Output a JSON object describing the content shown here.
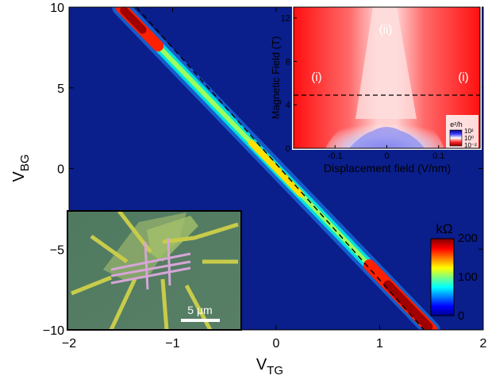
{
  "chart_data": [
    {
      "type": "heatmap",
      "title": "",
      "xlabel": "V",
      "xlabel_sub": "TG",
      "ylabel": "V",
      "ylabel_sub": "BG",
      "xlim": [
        -2,
        2
      ],
      "ylim": [
        -10,
        10
      ],
      "xticks": [
        "−2",
        "−1",
        "0",
        "1",
        "2"
      ],
      "yticks": [
        "10",
        "5",
        "0",
        "−5",
        "−10"
      ],
      "ridge": {
        "x": [
          -1.5,
          1.5
        ],
        "y": [
          10,
          -10
        ]
      },
      "dashed_line": {
        "x": [
          -1.35,
          1.43
        ],
        "y": [
          10,
          -10
        ]
      },
      "colorbar": {
        "unit": "kΩ",
        "ticks": [
          "200",
          "100",
          "0"
        ],
        "range": [
          0,
          200
        ],
        "colormap": "jet"
      },
      "background_color": "#0a1e8c"
    },
    {
      "type": "heatmap",
      "title": "",
      "xlabel": "Displacement field (V/nm)",
      "ylabel": "Magnetic Field (T)",
      "xticks": [
        "-0.1",
        "0",
        "0.1"
      ],
      "yticks": [
        "0",
        "4",
        "8",
        "12"
      ],
      "xlim": [
        -0.18,
        0.18
      ],
      "ylim": [
        0,
        13
      ],
      "dashed_line_y": 5,
      "region_labels": [
        "(i)",
        "(ii)",
        "(i)"
      ],
      "colorbar": {
        "unit": "e²/h",
        "ticks": [
          "10²",
          "10⁰",
          "10⁻²"
        ],
        "colormap": "blue-white-red"
      }
    }
  ],
  "photo": {
    "scalebar_label": "5 μm"
  }
}
